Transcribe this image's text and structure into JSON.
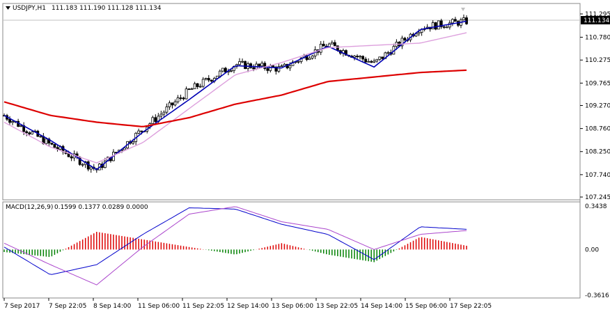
{
  "header": {
    "symbol": "USDJPY,H1",
    "ohlc": "111.183 111.190 111.128 111.134"
  },
  "macd_header": {
    "indicator": "MACD(12,26,9)",
    "values": "0.1599 0.1377 0.0289 0.0000"
  },
  "price_axis": {
    "labels": [
      "111.295",
      "110.780",
      "110.275",
      "109.765",
      "109.270",
      "108.760",
      "108.250",
      "107.740",
      "107.245"
    ],
    "current_price": "111.134",
    "min": 107.245,
    "max": 111.295
  },
  "macd_axis": {
    "labels": [
      "0.3438",
      "0.00",
      "-0.3616"
    ],
    "min": -0.3616,
    "max": 0.3438
  },
  "time_axis": {
    "labels": [
      "7 Sep 2017",
      "7 Sep 22:05",
      "8 Sep 14:00",
      "11 Sep 06:00",
      "11 Sep 22:05",
      "12 Sep 14:00",
      "13 Sep 06:00",
      "13 Sep 22:05",
      "14 Sep 14:00",
      "15 Sep 06:00",
      "17 Sep 22:05"
    ]
  },
  "colors": {
    "background": "#ffffff",
    "bull_body": "#ffffff",
    "bear_body": "#000000",
    "ma_fast": "#0000b4",
    "ma_mid": "#dda0dd",
    "ma_slow": "#dd0000",
    "hist_pos": "#dd0000",
    "hist_neg": "#008000",
    "macd_line": "#0000cc",
    "signal_line": "#aa44cc"
  },
  "chart_data": [
    {
      "type": "line",
      "name": "price",
      "x": [
        "7 Sep 2017",
        "7 Sep 22:05",
        "8 Sep 14:00",
        "11 Sep 06:00",
        "11 Sep 22:05",
        "12 Sep 14:00",
        "13 Sep 06:00",
        "13 Sep 22:05",
        "14 Sep 14:00",
        "15 Sep 06:00",
        "17 Sep 22:05"
      ],
      "close": [
        109.05,
        108.4,
        107.85,
        108.75,
        109.6,
        110.18,
        110.08,
        110.62,
        110.2,
        111.0,
        111.134
      ],
      "series": [
        {
          "values": [
            109.05,
            108.5,
            107.85,
            108.68,
            109.4,
            110.15,
            110.1,
            110.58,
            110.12,
            110.95,
            111.134
          ]
        },
        {
          "values": [
            108.9,
            108.35,
            108.0,
            108.45,
            109.2,
            109.95,
            110.22,
            110.55,
            110.6,
            110.65,
            110.88
          ]
        },
        {
          "values": [
            109.35,
            109.05,
            108.9,
            108.8,
            109.0,
            109.3,
            109.5,
            109.8,
            109.9,
            110.0,
            110.05
          ]
        }
      ],
      "ylim": [
        107.245,
        111.295
      ]
    },
    {
      "type": "bar",
      "name": "macd",
      "x": [
        "7 Sep 2017",
        "7 Sep 22:05",
        "8 Sep 14:00",
        "11 Sep 06:00",
        "11 Sep 22:05",
        "12 Sep 14:00",
        "13 Sep 06:00",
        "13 Sep 22:05",
        "14 Sep 14:00",
        "15 Sep 06:00",
        "17 Sep 22:05"
      ],
      "histogram": [
        -0.02,
        -0.06,
        0.14,
        0.08,
        0.02,
        -0.04,
        0.05,
        -0.04,
        -0.1,
        0.1,
        0.03
      ],
      "macd_line": [
        0.02,
        -0.2,
        -0.12,
        0.12,
        0.33,
        0.32,
        0.2,
        0.12,
        -0.08,
        0.18,
        0.16
      ],
      "signal_line": [
        0.05,
        -0.12,
        -0.28,
        0.02,
        0.28,
        0.34,
        0.22,
        0.16,
        0.0,
        0.12,
        0.15
      ],
      "ylim": [
        -0.3616,
        0.3438
      ]
    }
  ]
}
